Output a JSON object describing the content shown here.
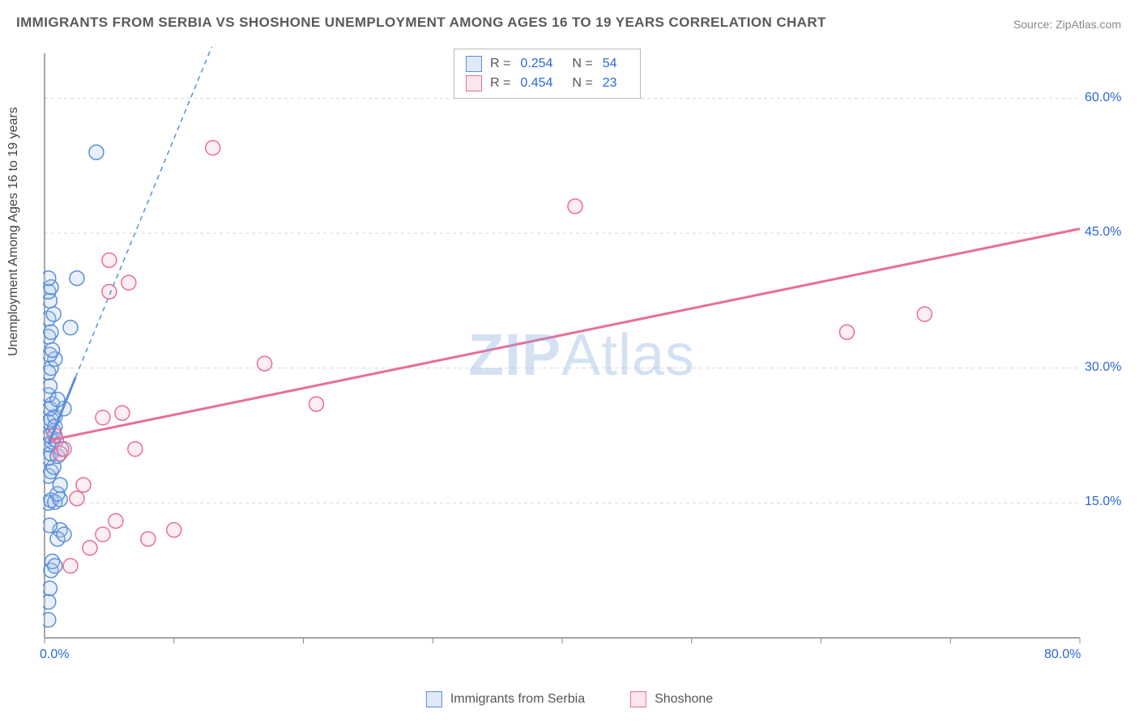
{
  "title": "IMMIGRANTS FROM SERBIA VS SHOSHONE UNEMPLOYMENT AMONG AGES 16 TO 19 YEARS CORRELATION CHART",
  "source": "Source: ZipAtlas.com",
  "ylabel": "Unemployment Among Ages 16 to 19 years",
  "watermark_a": "ZIP",
  "watermark_b": "Atlas",
  "chart": {
    "type": "scatter-correlation",
    "background_color": "#ffffff",
    "grid_color": "#d8d8d8",
    "axis_color": "#888888",
    "xlim": [
      0,
      80
    ],
    "ylim": [
      0,
      65
    ],
    "x_ticks": [
      0,
      10,
      20,
      30,
      40,
      50,
      60,
      70,
      80
    ],
    "x_tick_labels": {
      "0": "0.0%",
      "80": "80.0%"
    },
    "y_gridlines": [
      15,
      30,
      45,
      60
    ],
    "y_tick_labels": {
      "15": "15.0%",
      "30": "30.0%",
      "45": "45.0%",
      "60": "60.0%"
    },
    "marker_radius": 9,
    "marker_stroke_width": 1.5,
    "marker_fill_opacity": 0.25,
    "series": [
      {
        "name": "Immigrants from Serbia",
        "key": "serbia",
        "color_stroke": "#5b8fd6",
        "color_fill": "#a9c5ea",
        "R": "0.254",
        "N": "54",
        "trend": {
          "x1": 0.3,
          "y1": 21.5,
          "x2": 2.4,
          "y2": 29.0,
          "dash_to_x": 13.0,
          "dash_to_y": 66.0,
          "width": 3
        },
        "points": [
          [
            0.3,
            2.0
          ],
          [
            0.3,
            4.0
          ],
          [
            0.4,
            5.5
          ],
          [
            0.5,
            7.5
          ],
          [
            0.6,
            8.5
          ],
          [
            0.8,
            8.0
          ],
          [
            1.2,
            12.0
          ],
          [
            1.0,
            11.0
          ],
          [
            1.5,
            11.5
          ],
          [
            0.4,
            12.5
          ],
          [
            0.3,
            15.0
          ],
          [
            0.5,
            15.3
          ],
          [
            0.8,
            15.1
          ],
          [
            1.2,
            15.4
          ],
          [
            1.0,
            16.0
          ],
          [
            0.3,
            18.0
          ],
          [
            0.5,
            18.5
          ],
          [
            0.7,
            19.0
          ],
          [
            0.3,
            20.0
          ],
          [
            0.5,
            20.5
          ],
          [
            0.3,
            21.5
          ],
          [
            0.6,
            21.8
          ],
          [
            0.9,
            22.0
          ],
          [
            0.4,
            22.5
          ],
          [
            0.7,
            23.0
          ],
          [
            0.3,
            24.0
          ],
          [
            0.5,
            24.3
          ],
          [
            0.8,
            24.6
          ],
          [
            0.4,
            25.5
          ],
          [
            0.6,
            26.0
          ],
          [
            0.3,
            27.0
          ],
          [
            0.4,
            28.0
          ],
          [
            0.3,
            29.5
          ],
          [
            0.5,
            30.0
          ],
          [
            0.8,
            31.0
          ],
          [
            0.4,
            31.5
          ],
          [
            0.6,
            32.0
          ],
          [
            0.3,
            33.5
          ],
          [
            0.5,
            34.0
          ],
          [
            0.3,
            35.5
          ],
          [
            0.7,
            36.0
          ],
          [
            0.4,
            37.5
          ],
          [
            0.3,
            38.5
          ],
          [
            0.5,
            39.0
          ],
          [
            0.3,
            40.0
          ],
          [
            0.8,
            23.5
          ],
          [
            1.0,
            20.2
          ],
          [
            1.3,
            21.0
          ],
          [
            1.5,
            25.5
          ],
          [
            1.0,
            26.5
          ],
          [
            1.2,
            17.0
          ],
          [
            2.0,
            34.5
          ],
          [
            2.5,
            40.0
          ],
          [
            4.0,
            54.0
          ]
        ]
      },
      {
        "name": "Shoshone",
        "key": "shoshone",
        "color_stroke": "#e86e9a",
        "color_fill": "#f5bccd",
        "R": "0.454",
        "N": "23",
        "trend": {
          "x1": 0.5,
          "y1": 22.0,
          "x2": 80.0,
          "y2": 45.5,
          "width": 3
        },
        "points": [
          [
            1.2,
            20.5
          ],
          [
            1.5,
            21.0
          ],
          [
            0.8,
            22.5
          ],
          [
            2.5,
            15.5
          ],
          [
            3.0,
            17.0
          ],
          [
            3.5,
            10.0
          ],
          [
            4.5,
            11.5
          ],
          [
            2.0,
            8.0
          ],
          [
            5.5,
            13.0
          ],
          [
            8.0,
            11.0
          ],
          [
            4.5,
            24.5
          ],
          [
            6.0,
            25.0
          ],
          [
            7.0,
            21.0
          ],
          [
            10.0,
            12.0
          ],
          [
            5.0,
            38.5
          ],
          [
            6.5,
            39.5
          ],
          [
            5.0,
            42.0
          ],
          [
            17.0,
            30.5
          ],
          [
            21.0,
            26.0
          ],
          [
            13.0,
            54.5
          ],
          [
            41.0,
            48.0
          ],
          [
            62.0,
            34.0
          ],
          [
            68.0,
            36.0
          ]
        ]
      }
    ]
  },
  "legend_top": {
    "R_label": "R =",
    "N_label": "N ="
  },
  "legend_bottom": {
    "serbia": "Immigrants from Serbia",
    "shoshone": "Shoshone"
  }
}
